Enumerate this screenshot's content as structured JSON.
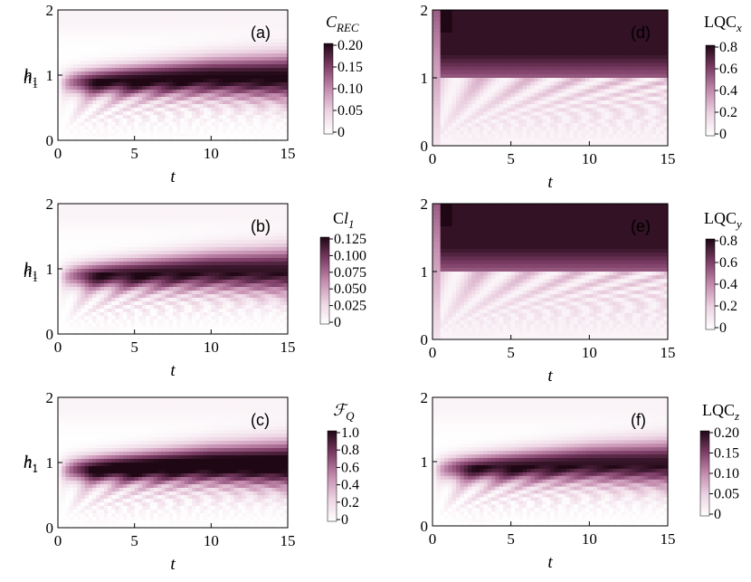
{
  "chart_data": [
    {
      "type": "heatmap",
      "tag": "(a)",
      "colorbar_label": {
        "main": "C",
        "sub": "REC",
        "italic_main": true
      },
      "colorbar_ticks": [
        "0.20",
        "0.15",
        "0.10",
        "0.05",
        "0"
      ],
      "xlabel": "t",
      "ylabel": {
        "main": "h",
        "sub": "1"
      },
      "xticks": [
        "0",
        "5",
        "10",
        "15"
      ],
      "yticks": [
        "0",
        "1",
        "2"
      ],
      "xlim": [
        0,
        15
      ],
      "ylim": [
        0,
        2
      ],
      "zlim": [
        0,
        0.22
      ],
      "colors": {
        "low": "#ffffff",
        "high": "#1f0714"
      }
    },
    {
      "type": "heatmap",
      "tag": "(b)",
      "colorbar_label": {
        "main": "Cl",
        "sub": "1",
        "italic_part": "l"
      },
      "colorbar_ticks": [
        "0.125",
        "0.100",
        "0.075",
        "0.050",
        "0.025",
        "0"
      ],
      "xlabel": "t",
      "ylabel": {
        "main": "h",
        "sub": "1"
      },
      "xticks": [
        "0",
        "5",
        "10",
        "15"
      ],
      "yticks": [
        "0",
        "1",
        "2"
      ],
      "xlim": [
        0,
        15
      ],
      "ylim": [
        0,
        2
      ],
      "zlim": [
        0,
        0.13
      ],
      "colors": {
        "low": "#ffffff",
        "high": "#1f0714"
      }
    },
    {
      "type": "heatmap",
      "tag": "(c)",
      "colorbar_label": {
        "main": "ℱ",
        "sub": "Q",
        "italic_main": true
      },
      "colorbar_ticks": [
        "1.0",
        "0.8",
        "0.6",
        "0.4",
        "0.2",
        "0"
      ],
      "xlabel": "t",
      "ylabel": {
        "main": "h",
        "sub": "1"
      },
      "xticks": [
        "0",
        "5",
        "10",
        "15"
      ],
      "yticks": [
        "0",
        "1",
        "2"
      ],
      "xlim": [
        0,
        15
      ],
      "ylim": [
        0,
        2
      ],
      "zlim": [
        0,
        1.1
      ],
      "colors": {
        "low": "#ffffff",
        "high": "#1f0714"
      }
    },
    {
      "type": "heatmap",
      "tag": "(d)",
      "colorbar_label": {
        "main": "LQC",
        "sub": "x"
      },
      "colorbar_ticks": [
        "0.8",
        "0.6",
        "0.4",
        "0.2",
        "0"
      ],
      "xlabel": "t",
      "ylabel": {
        "main": "h",
        "sub": "1"
      },
      "xticks": [
        "0",
        "5",
        "10",
        "15"
      ],
      "yticks": [
        "0",
        "1",
        "2"
      ],
      "xlim": [
        0,
        15
      ],
      "ylim": [
        0,
        2
      ],
      "zlim": [
        0,
        0.9
      ],
      "colors": {
        "low": "#ffffff",
        "high": "#1f0714"
      }
    },
    {
      "type": "heatmap",
      "tag": "(e)",
      "colorbar_label": {
        "main": "LQC",
        "sub": "y"
      },
      "colorbar_ticks": [
        "0.8",
        "0.6",
        "0.4",
        "0.2",
        "0"
      ],
      "xlabel": "t",
      "ylabel": {
        "main": "h",
        "sub": "1"
      },
      "xticks": [
        "0",
        "5",
        "10",
        "15"
      ],
      "yticks": [
        "0",
        "1",
        "2"
      ],
      "xlim": [
        0,
        15
      ],
      "ylim": [
        0,
        2
      ],
      "zlim": [
        0,
        0.9
      ],
      "colors": {
        "low": "#ffffff",
        "high": "#1f0714"
      }
    },
    {
      "type": "heatmap",
      "tag": "(f)",
      "colorbar_label": {
        "main": "LQC",
        "sub": "z"
      },
      "colorbar_ticks": [
        "0.20",
        "0.15",
        "0.10",
        "0.05",
        "0"
      ],
      "xlabel": "t",
      "ylabel": {
        "main": "h",
        "sub": "1"
      },
      "xticks": [
        "0",
        "5",
        "10",
        "15"
      ],
      "yticks": [
        "0",
        "1",
        "2"
      ],
      "xlim": [
        0,
        15
      ],
      "ylim": [
        0,
        2
      ],
      "zlim": [
        0,
        0.22
      ],
      "colors": {
        "low": "#ffffff",
        "high": "#1f0714"
      }
    }
  ]
}
